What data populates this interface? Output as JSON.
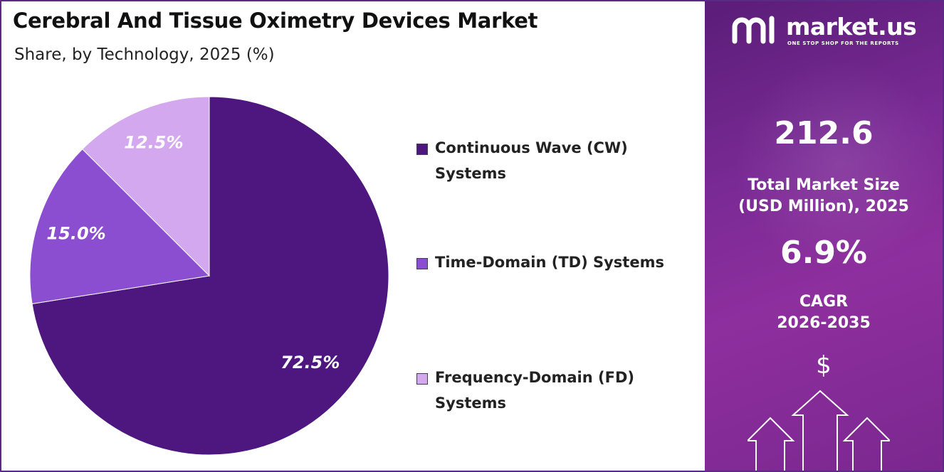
{
  "chart_data": {
    "type": "pie",
    "title": "Cerebral And Tissue Oximetry Devices Market",
    "subtitle": "Share, by Technology, 2025 (%)",
    "categories": [
      "Continuous Wave (CW) Systems",
      "Time-Domain (TD) Systems",
      "Frequency-Domain (FD) Systems"
    ],
    "values": [
      72.5,
      15.0,
      12.5
    ],
    "labels": [
      "72.5%",
      "15.0%",
      "12.5%"
    ],
    "colors": [
      "#4e1780",
      "#8b4ed1",
      "#d4a8ee"
    ],
    "start_angle": "12 o'clock",
    "direction": "clockwise",
    "legend_position": "right"
  },
  "legend": {
    "items": [
      {
        "line1": "Continuous Wave (CW)",
        "line2": "Systems"
      },
      {
        "line1": "Time-Domain (TD) Systems",
        "line2": ""
      },
      {
        "line1": "Frequency-Domain (FD)",
        "line2": "Systems"
      }
    ]
  },
  "sidebar": {
    "logo_text": "market.us",
    "logo_tagline": "ONE STOP SHOP FOR THE REPORTS",
    "market_size_value": "212.6",
    "market_size_label_line1": "Total Market Size",
    "market_size_label_line2": "(USD Million), 2025",
    "cagr_value": "6.9%",
    "cagr_label_line1": "CAGR",
    "cagr_label_line2": "2026-2035",
    "currency_symbol": "$",
    "icons": [
      "market-us-logo-icon",
      "growth-arrows-icon"
    ]
  }
}
